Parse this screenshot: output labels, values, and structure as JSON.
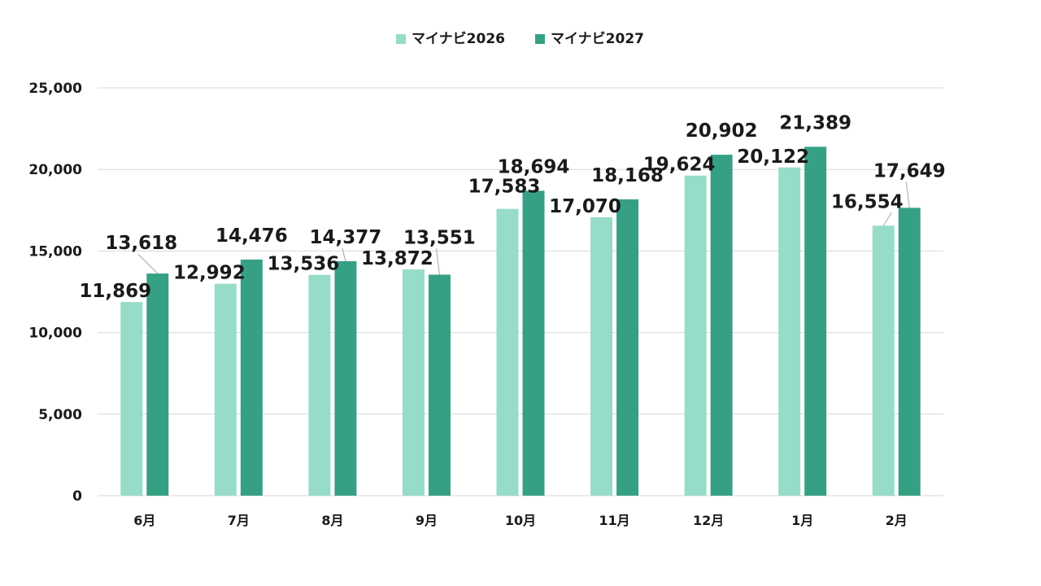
{
  "chart_data": {
    "type": "bar",
    "categories": [
      "6月",
      "7月",
      "8月",
      "9月",
      "10月",
      "11月",
      "12月",
      "1月",
      "2月"
    ],
    "series": [
      {
        "name": "マイナビ2026",
        "color": "#96dcc8",
        "values": [
          11869,
          12992,
          13536,
          13872,
          17583,
          17070,
          19624,
          20122,
          16554
        ]
      },
      {
        "name": "マイナビ2027",
        "color": "#36a085",
        "values": [
          13618,
          14476,
          14377,
          13551,
          18694,
          18168,
          20902,
          21389,
          17649
        ]
      }
    ],
    "data_labels": [
      [
        "11,869",
        "12,992",
        "13,536",
        "13,872",
        "17,583",
        "17,070",
        "19,624",
        "20,122",
        "16,554"
      ],
      [
        "13,618",
        "14,476",
        "14,377",
        "13,551",
        "18,694",
        "18,168",
        "20,902",
        "21,389",
        "17,649"
      ]
    ],
    "yticks": [
      "0",
      "5,000",
      "10,000",
      "15,000",
      "20,000",
      "25,000"
    ],
    "ylim": [
      0,
      25000
    ],
    "grid": true,
    "legend_position": "top-center",
    "title": "",
    "xlabel": "",
    "ylabel": ""
  }
}
